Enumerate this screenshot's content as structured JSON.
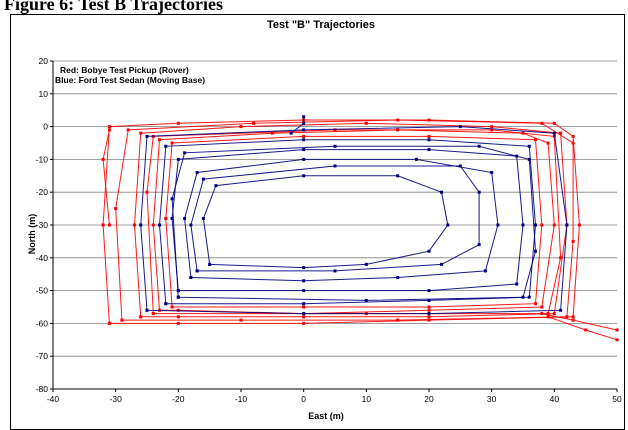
{
  "figure": {
    "caption": "Figure 6: Test B Trajectories"
  },
  "colors": {
    "rover": "#ff0000",
    "moving_base": "#000080",
    "gridline": "#808080",
    "axis": "#000000"
  },
  "chart_data": {
    "type": "scatter",
    "title": "Test \"B\" Trajectories",
    "xlabel": "East (m)",
    "ylabel": "North (m)",
    "xlim": [
      -40,
      50
    ],
    "ylim": [
      -80,
      20
    ],
    "x_ticks": [
      "-40",
      "-30",
      "-20",
      "-10",
      "0",
      "10",
      "20",
      "30",
      "40",
      "50"
    ],
    "y_ticks": [
      "20",
      "10",
      "0",
      "-10",
      "-20",
      "-30",
      "-40",
      "-50",
      "-60",
      "-70",
      "-80"
    ],
    "grid": "horizontal major gridlines",
    "legend": {
      "placement": "top-left",
      "lines": [
        "Red: Bobye Test Pickup (Rover)",
        "Blue: Ford Test Sedan (Moving Base)"
      ]
    },
    "series": [
      {
        "name": "Red: Bobye Test Pickup (Rover)",
        "color": "#ff0000",
        "style": "line-with-markers",
        "paths": [
          [
            [
              -31,
              -60
            ],
            [
              -32,
              -30
            ],
            [
              -31,
              0
            ],
            [
              -20,
              1
            ],
            [
              0,
              2
            ],
            [
              20,
              2
            ],
            [
              40,
              1
            ],
            [
              43,
              -3
            ],
            [
              44,
              -30
            ],
            [
              43,
              -58
            ],
            [
              20,
              -59
            ],
            [
              0,
              -60
            ],
            [
              -20,
              -60
            ],
            [
              -31,
              -60
            ]
          ],
          [
            [
              -26,
              -58
            ],
            [
              -27,
              -30
            ],
            [
              -26,
              -2
            ],
            [
              -10,
              0
            ],
            [
              10,
              1
            ],
            [
              30,
              0
            ],
            [
              41,
              -2
            ],
            [
              42,
              -30
            ],
            [
              40,
              -57
            ],
            [
              20,
              -58
            ],
            [
              0,
              -58
            ],
            [
              -20,
              -58
            ],
            [
              -26,
              -58
            ]
          ],
          [
            [
              -23,
              -56
            ],
            [
              -24,
              -30
            ],
            [
              -23,
              -4
            ],
            [
              -5,
              -2
            ],
            [
              15,
              -1
            ],
            [
              35,
              -2
            ],
            [
              39,
              -5
            ],
            [
              40,
              -30
            ],
            [
              38,
              -55
            ],
            [
              20,
              -56
            ],
            [
              0,
              -57
            ],
            [
              -20,
              -56
            ],
            [
              -23,
              -56
            ]
          ],
          [
            [
              -21,
              -55
            ],
            [
              -22,
              -28
            ],
            [
              -21,
              -5
            ],
            [
              0,
              -3
            ],
            [
              20,
              -3
            ],
            [
              37,
              -4
            ],
            [
              38,
              -30
            ],
            [
              37,
              -54
            ],
            [
              20,
              -55
            ],
            [
              0,
              -55
            ],
            [
              -21,
              -55
            ]
          ],
          [
            [
              -29,
              -59
            ],
            [
              -30,
              -25
            ],
            [
              -28,
              -1
            ],
            [
              -8,
              1
            ],
            [
              15,
              2
            ],
            [
              38,
              1
            ],
            [
              43,
              -5
            ],
            [
              43,
              -35
            ],
            [
              42,
              -58
            ],
            [
              15,
              -59
            ],
            [
              -10,
              -59
            ],
            [
              -29,
              -59
            ]
          ],
          [
            [
              -24,
              -57
            ],
            [
              -25,
              -20
            ],
            [
              -24,
              -3
            ],
            [
              5,
              -1
            ],
            [
              30,
              -1
            ],
            [
              40,
              -3
            ],
            [
              41,
              -40
            ],
            [
              39,
              -57
            ],
            [
              10,
              -57
            ],
            [
              -24,
              -57
            ]
          ],
          [
            [
              38,
              -57
            ],
            [
              43,
              -59
            ],
            [
              50,
              -62
            ]
          ],
          [
            [
              39,
              -58
            ],
            [
              45,
              -62
            ],
            [
              50,
              -65
            ]
          ],
          [
            [
              -31,
              -30
            ],
            [
              -32,
              -10
            ],
            [
              -31,
              -1
            ]
          ]
        ]
      },
      {
        "name": "Blue: Ford Test Sedan (Moving Base)",
        "color": "#000080",
        "style": "line-with-markers",
        "paths": [
          [
            [
              -22,
              -54
            ],
            [
              -23,
              -30
            ],
            [
              -22,
              -6
            ],
            [
              0,
              -4
            ],
            [
              20,
              -4
            ],
            [
              36,
              -6
            ],
            [
              37,
              -30
            ],
            [
              36,
              -52
            ],
            [
              20,
              -53
            ],
            [
              0,
              -54
            ],
            [
              -22,
              -54
            ]
          ],
          [
            [
              -20,
              -50
            ],
            [
              -21,
              -28
            ],
            [
              -20,
              -10
            ],
            [
              0,
              -7
            ],
            [
              20,
              -7
            ],
            [
              34,
              -9
            ],
            [
              35,
              -30
            ],
            [
              34,
              -48
            ],
            [
              20,
              -50
            ],
            [
              0,
              -50
            ],
            [
              -20,
              -50
            ]
          ],
          [
            [
              -18,
              -46
            ],
            [
              -19,
              -28
            ],
            [
              -17,
              -14
            ],
            [
              0,
              -10
            ],
            [
              18,
              -10
            ],
            [
              30,
              -14
            ],
            [
              31,
              -30
            ],
            [
              29,
              -44
            ],
            [
              15,
              -46
            ],
            [
              0,
              -47
            ],
            [
              -18,
              -46
            ]
          ],
          [
            [
              -15,
              -42
            ],
            [
              -16,
              -28
            ],
            [
              -14,
              -18
            ],
            [
              0,
              -15
            ],
            [
              15,
              -15
            ],
            [
              22,
              -20
            ],
            [
              23,
              -30
            ],
            [
              20,
              -38
            ],
            [
              10,
              -42
            ],
            [
              0,
              -43
            ],
            [
              -15,
              -42
            ]
          ],
          [
            [
              -25,
              -56
            ],
            [
              -26,
              -30
            ],
            [
              -25,
              -3
            ],
            [
              0,
              -1
            ],
            [
              25,
              0
            ],
            [
              40,
              -2
            ],
            [
              42,
              -30
            ],
            [
              41,
              -56
            ],
            [
              20,
              -57
            ],
            [
              0,
              -57
            ],
            [
              -25,
              -56
            ]
          ],
          [
            [
              -20,
              -52
            ],
            [
              -21,
              -22
            ],
            [
              -19,
              -8
            ],
            [
              5,
              -6
            ],
            [
              28,
              -6
            ],
            [
              36,
              -10
            ],
            [
              37,
              -38
            ],
            [
              35,
              -52
            ],
            [
              10,
              -53
            ],
            [
              -20,
              -52
            ]
          ],
          [
            [
              0,
              3
            ],
            [
              0,
              1
            ],
            [
              -2,
              -2
            ]
          ],
          [
            [
              -17,
              -44
            ],
            [
              -18,
              -30
            ],
            [
              -16,
              -16
            ],
            [
              5,
              -12
            ],
            [
              25,
              -12
            ],
            [
              28,
              -20
            ],
            [
              28,
              -36
            ],
            [
              22,
              -42
            ],
            [
              5,
              -44
            ],
            [
              -17,
              -44
            ]
          ]
        ]
      }
    ]
  }
}
